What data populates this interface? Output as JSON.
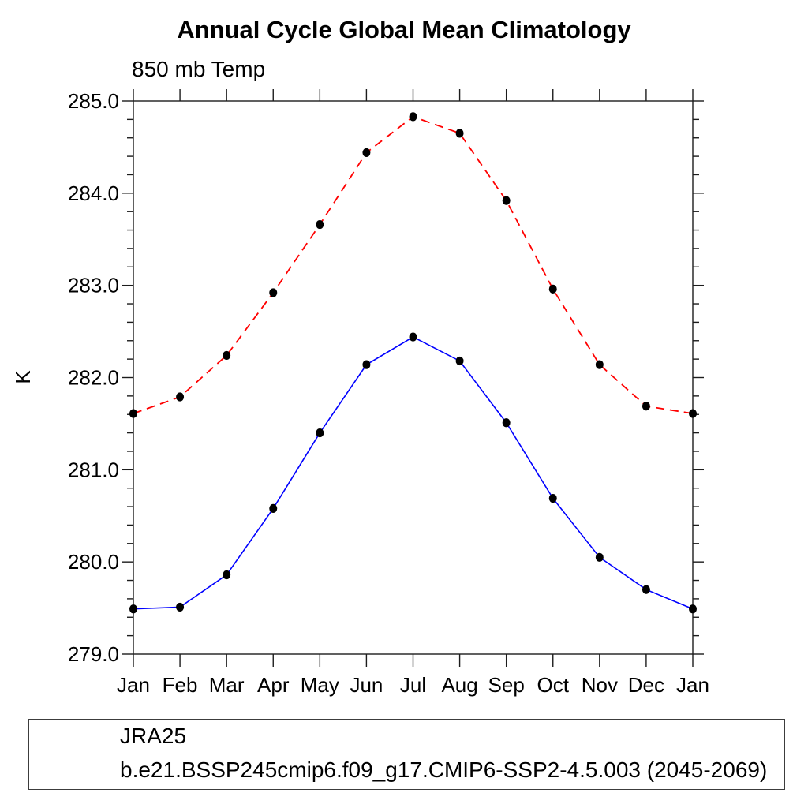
{
  "page_title": "Annual Cycle Global Mean Climatology",
  "subtitle": "850 mb Temp",
  "y_axis_title": "K",
  "axis_color": "#1c1c1c",
  "chart_data": {
    "type": "line",
    "title": "Annual Cycle Global Mean Climatology",
    "subtitle": "850 mb Temp",
    "xlabel": "",
    "ylabel": "K",
    "categories": [
      "Jan",
      "Feb",
      "Mar",
      "Apr",
      "May",
      "Jun",
      "Jul",
      "Aug",
      "Sep",
      "Oct",
      "Nov",
      "Dec",
      "Jan"
    ],
    "series": [
      {
        "name": "JRA25",
        "color": "#0000ff",
        "line_style": "solid",
        "marker": "filled-circle",
        "marker_color": "#000000",
        "values": [
          279.49,
          279.51,
          279.86,
          280.58,
          281.4,
          282.14,
          282.44,
          282.18,
          281.51,
          280.69,
          280.05,
          279.7,
          279.49
        ]
      },
      {
        "name": "b.e21.BSSP245cmip6.f09_g17.CMIP6-SSP2-4.5.003 (2045-2069)",
        "color": "#ff0000",
        "line_style": "dashed",
        "marker": "filled-circle",
        "marker_color": "#000000",
        "values": [
          281.61,
          281.79,
          282.24,
          282.92,
          283.66,
          284.44,
          284.83,
          284.65,
          283.92,
          282.96,
          282.14,
          281.69,
          281.61
        ]
      }
    ],
    "ylim": [
      279.0,
      285.0
    ],
    "yticks_major": [
      279.0,
      280.0,
      281.0,
      282.0,
      283.0,
      284.0,
      285.0
    ],
    "ytick_label_format": "one-decimal",
    "ytick_minor_step": 0.2,
    "grid": false,
    "legend_position": "bottom-left-box"
  }
}
